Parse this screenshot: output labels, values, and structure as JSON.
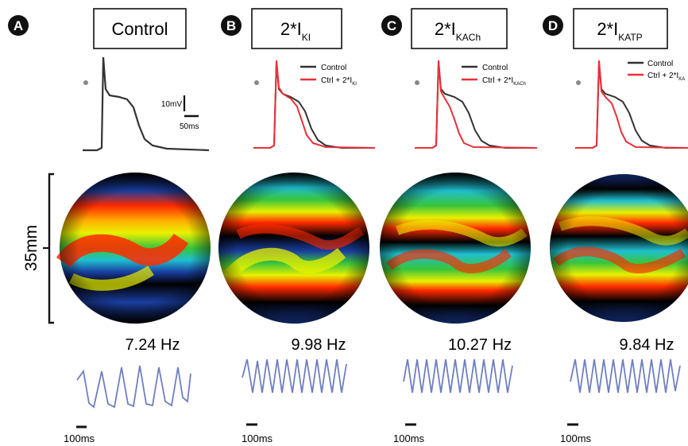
{
  "panels": [
    {
      "letter": "A",
      "title": "Control",
      "title_sub": "",
      "frequency": "7.24 Hz",
      "time_scale": "100ms",
      "legend": null,
      "scale_bar": {
        "voltage": "10mV",
        "time": "50ms"
      }
    },
    {
      "letter": "B",
      "title": "2*I",
      "title_sub": "KI",
      "frequency": "9.98 Hz",
      "time_scale": "100ms",
      "legend": {
        "control": "Control",
        "modified": "Ctrl + 2*I",
        "modified_sub": "KI"
      }
    },
    {
      "letter": "C",
      "title": "2*I",
      "title_sub": "KACh",
      "frequency": "10.27 Hz",
      "time_scale": "100ms",
      "legend": {
        "control": "Control",
        "modified": "Ctrl + 2*I",
        "modified_sub": "KACh"
      }
    },
    {
      "letter": "D",
      "title": "2*I",
      "title_sub": "KATP",
      "frequency": "9.84 Hz",
      "time_scale": "100ms",
      "legend": {
        "control": "Control",
        "modified": "Ctrl + 2*I",
        "modified_sub": "KA"
      }
    }
  ],
  "spatial_scale": "35mm",
  "colors": {
    "control_trace": "#333333",
    "modified_trace": "#e8313a",
    "ecg_trace": "#6f7fc0",
    "badge": "#111111"
  }
}
